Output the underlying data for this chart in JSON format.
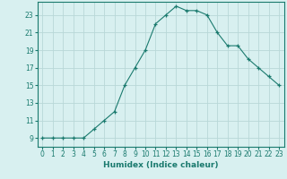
{
  "x": [
    0,
    1,
    2,
    3,
    4,
    5,
    6,
    7,
    8,
    9,
    10,
    11,
    12,
    13,
    14,
    15,
    16,
    17,
    18,
    19,
    20,
    21,
    22,
    23
  ],
  "y": [
    9,
    9,
    9,
    9,
    9,
    10,
    11,
    12,
    15,
    17,
    19,
    22,
    23,
    24,
    23.5,
    23.5,
    23,
    21,
    19.5,
    19.5,
    18,
    17,
    16,
    15
  ],
  "line_color": "#1a7a6e",
  "marker_color": "#1a7a6e",
  "bg_color": "#d8f0f0",
  "grid_color": "#b8d8d8",
  "xlabel": "Humidex (Indice chaleur)",
  "ylabel": "",
  "xlim": [
    -0.5,
    23.5
  ],
  "ylim": [
    8.0,
    24.5
  ],
  "yticks": [
    9,
    11,
    13,
    15,
    17,
    19,
    21,
    23
  ],
  "xticks": [
    0,
    1,
    2,
    3,
    4,
    5,
    6,
    7,
    8,
    9,
    10,
    11,
    12,
    13,
    14,
    15,
    16,
    17,
    18,
    19,
    20,
    21,
    22,
    23
  ],
  "axis_fontsize": 6.5,
  "tick_fontsize": 5.5
}
